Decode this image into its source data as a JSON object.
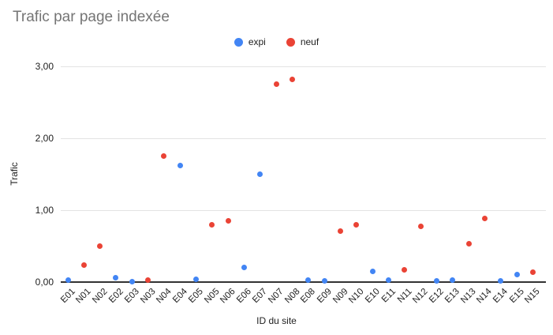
{
  "chart_data": {
    "type": "scatter",
    "title": "Trafic par page indexée",
    "xlabel": "ID du site",
    "ylabel": "Trafic",
    "ylim": [
      0,
      3
    ],
    "grid": true,
    "legend_position": "top-center",
    "yticks": [
      {
        "value": 0,
        "label": "0,00"
      },
      {
        "value": 1,
        "label": "1,00"
      },
      {
        "value": 2,
        "label": "2,00"
      },
      {
        "value": 3,
        "label": "3,00"
      }
    ],
    "categories": [
      "E01",
      "N01",
      "N02",
      "E02",
      "E03",
      "N03",
      "N04",
      "E04",
      "E05",
      "N05",
      "N06",
      "E06",
      "E07",
      "N07",
      "N08",
      "E08",
      "E09",
      "N09",
      "N10",
      "E10",
      "E11",
      "N11",
      "N12",
      "E12",
      "E13",
      "N13",
      "N14",
      "E14",
      "E15",
      "N15"
    ],
    "series": [
      {
        "name": "expi",
        "color": "#4285F4",
        "points": [
          {
            "id": "E01",
            "value": 0.03
          },
          {
            "id": "E02",
            "value": 0.06
          },
          {
            "id": "E03",
            "value": 0.01
          },
          {
            "id": "E04",
            "value": 1.62
          },
          {
            "id": "E05",
            "value": 0.04
          },
          {
            "id": "E06",
            "value": 0.2
          },
          {
            "id": "E07",
            "value": 1.5
          },
          {
            "id": "E08",
            "value": 0.03
          },
          {
            "id": "E09",
            "value": 0.02
          },
          {
            "id": "E10",
            "value": 0.15
          },
          {
            "id": "E11",
            "value": 0.03
          },
          {
            "id": "E12",
            "value": 0.02
          },
          {
            "id": "E13",
            "value": 0.03
          },
          {
            "id": "E14",
            "value": 0.02
          },
          {
            "id": "E15",
            "value": 0.1
          }
        ]
      },
      {
        "name": "neuf",
        "color": "#EA4335",
        "points": [
          {
            "id": "N01",
            "value": 0.24
          },
          {
            "id": "N02",
            "value": 0.5
          },
          {
            "id": "N03",
            "value": 0.03
          },
          {
            "id": "N04",
            "value": 1.75
          },
          {
            "id": "N05",
            "value": 0.8
          },
          {
            "id": "N06",
            "value": 0.85
          },
          {
            "id": "N07",
            "value": 2.75
          },
          {
            "id": "N08",
            "value": 2.82
          },
          {
            "id": "N09",
            "value": 0.71
          },
          {
            "id": "N10",
            "value": 0.8
          },
          {
            "id": "N11",
            "value": 0.17
          },
          {
            "id": "N12",
            "value": 0.78
          },
          {
            "id": "N13",
            "value": 0.53
          },
          {
            "id": "N14",
            "value": 0.89
          },
          {
            "id": "N15",
            "value": 0.14
          }
        ]
      }
    ],
    "theme": {
      "title_color": "#757575",
      "axis_text_color": "#212121",
      "gridline_color": "#e3e3e3",
      "axis_line_color": "#333333",
      "background": "#ffffff"
    }
  }
}
